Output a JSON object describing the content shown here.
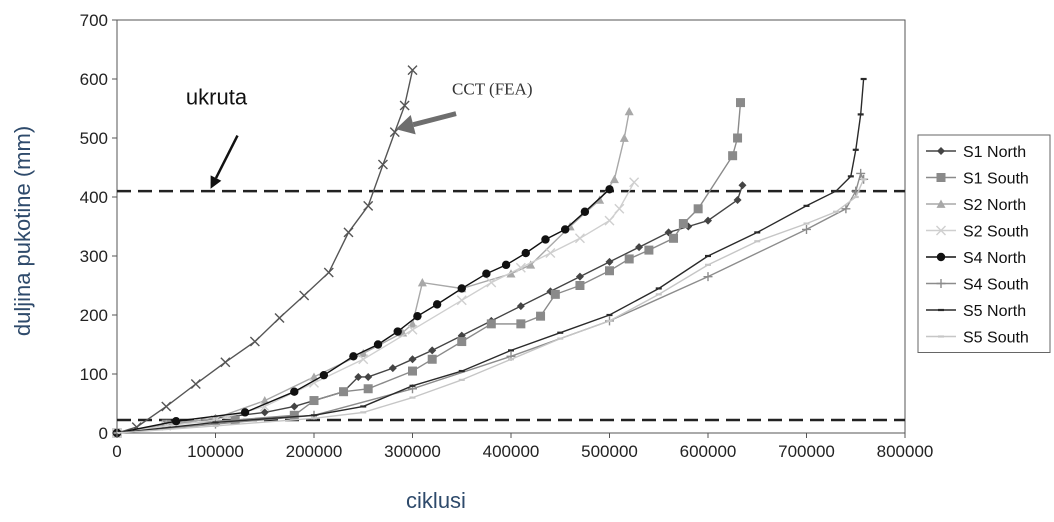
{
  "chart_data": {
    "type": "line",
    "title": "",
    "xlabel": "ciklusi",
    "ylabel": "duljina pukotine (mm)",
    "xlim": [
      0,
      800000
    ],
    "ylim": [
      0,
      700
    ],
    "x_ticks": [
      "0",
      "100000",
      "200000",
      "300000",
      "400000",
      "500000",
      "600000",
      "700000",
      "800000"
    ],
    "y_ticks": [
      "0",
      "100",
      "200",
      "300",
      "400",
      "500",
      "600",
      "700"
    ],
    "legend_position": "right",
    "grid": false,
    "reference_lines": [
      {
        "y": 410,
        "style": "dashed",
        "color": "#222222"
      },
      {
        "y": 22,
        "style": "dashed",
        "color": "#222222"
      }
    ],
    "annotations": [
      {
        "text": "ukruta",
        "x": 100000,
        "y": 560,
        "arrow_to": [
          95000,
          414
        ]
      },
      {
        "text": "CCT (FEA)",
        "x": 330000,
        "y": 582,
        "arrow_to": [
          283000,
          515
        ]
      }
    ],
    "series": [
      {
        "name": "",
        "color": "#555555",
        "marker": "x",
        "x": [
          0,
          20000,
          50000,
          80000,
          110000,
          140000,
          165000,
          190000,
          215000,
          235000,
          255000,
          270000,
          282000,
          292000,
          300000
        ],
        "y": [
          0,
          10,
          45,
          83,
          120,
          155,
          195,
          233,
          272,
          340,
          385,
          455,
          510,
          555,
          615
        ]
      },
      {
        "name": "S1 North",
        "color": "#444444",
        "marker": "diamond",
        "x": [
          0,
          50000,
          100000,
          150000,
          180000,
          200000,
          230000,
          245000,
          255000,
          280000,
          300000,
          320000,
          350000,
          380000,
          410000,
          440000,
          470000,
          500000,
          530000,
          560000,
          580000,
          600000,
          630000,
          635000
        ],
        "y": [
          0,
          15,
          25,
          35,
          45,
          55,
          70,
          95,
          95,
          110,
          125,
          140,
          165,
          190,
          215,
          240,
          265,
          290,
          315,
          340,
          350,
          360,
          395,
          420
        ]
      },
      {
        "name": "S1 South",
        "color": "#8a8a8a",
        "marker": "square",
        "x": [
          0,
          50000,
          120000,
          180000,
          200000,
          230000,
          255000,
          300000,
          320000,
          350000,
          380000,
          410000,
          430000,
          445000,
          470000,
          500000,
          520000,
          540000,
          565000,
          575000,
          590000,
          625000,
          630000,
          633000
        ],
        "y": [
          0,
          15,
          22,
          30,
          55,
          70,
          75,
          105,
          125,
          155,
          185,
          185,
          198,
          235,
          250,
          275,
          295,
          310,
          330,
          355,
          380,
          470,
          500,
          560
        ]
      },
      {
        "name": "S2 North",
        "color": "#a8a8a8",
        "marker": "triangle",
        "x": [
          0,
          50000,
          100000,
          150000,
          200000,
          250000,
          290000,
          300000,
          310000,
          350000,
          400000,
          420000,
          460000,
          490000,
          505000,
          515000,
          520000
        ],
        "y": [
          0,
          15,
          25,
          55,
          95,
          135,
          170,
          185,
          255,
          245,
          270,
          285,
          350,
          395,
          430,
          500,
          545
        ]
      },
      {
        "name": "S2 South",
        "color": "#cfcfcf",
        "marker": "x",
        "x": [
          0,
          50000,
          100000,
          150000,
          200000,
          250000,
          300000,
          350000,
          380000,
          410000,
          440000,
          470000,
          500000,
          510000,
          525000
        ],
        "y": [
          0,
          12,
          22,
          45,
          85,
          125,
          175,
          225,
          255,
          280,
          305,
          330,
          360,
          380,
          425
        ]
      },
      {
        "name": "S4 North",
        "color": "#111111",
        "marker": "circle",
        "x": [
          0,
          60000,
          130000,
          180000,
          210000,
          240000,
          265000,
          285000,
          305000,
          325000,
          350000,
          375000,
          395000,
          415000,
          435000,
          455000,
          475000,
          500000
        ],
        "y": [
          0,
          20,
          35,
          70,
          98,
          130,
          150,
          172,
          198,
          218,
          245,
          270,
          285,
          305,
          328,
          345,
          375,
          413
        ]
      },
      {
        "name": "S4 South",
        "color": "#8c8c8c",
        "marker": "plus",
        "x": [
          0,
          100000,
          200000,
          300000,
          400000,
          500000,
          600000,
          700000,
          740000,
          750000,
          755000,
          758000
        ],
        "y": [
          0,
          15,
          30,
          75,
          130,
          190,
          265,
          345,
          380,
          410,
          440,
          430
        ]
      },
      {
        "name": "S5 North",
        "color": "#2a2a2a",
        "marker": "dash",
        "x": [
          0,
          100000,
          200000,
          250000,
          300000,
          350000,
          400000,
          450000,
          500000,
          550000,
          600000,
          650000,
          700000,
          730000,
          745000,
          750000,
          755000,
          758000
        ],
        "y": [
          0,
          18,
          30,
          45,
          80,
          105,
          140,
          170,
          200,
          245,
          300,
          340,
          385,
          410,
          435,
          480,
          540,
          600
        ]
      },
      {
        "name": "S5 South",
        "color": "#c6c6c6",
        "marker": "dash",
        "x": [
          0,
          100000,
          200000,
          250000,
          300000,
          350000,
          400000,
          450000,
          500000,
          550000,
          600000,
          650000,
          700000,
          730000,
          750000,
          758000
        ],
        "y": [
          0,
          12,
          25,
          35,
          60,
          90,
          125,
          160,
          190,
          235,
          285,
          325,
          355,
          375,
          400,
          430
        ]
      }
    ]
  }
}
